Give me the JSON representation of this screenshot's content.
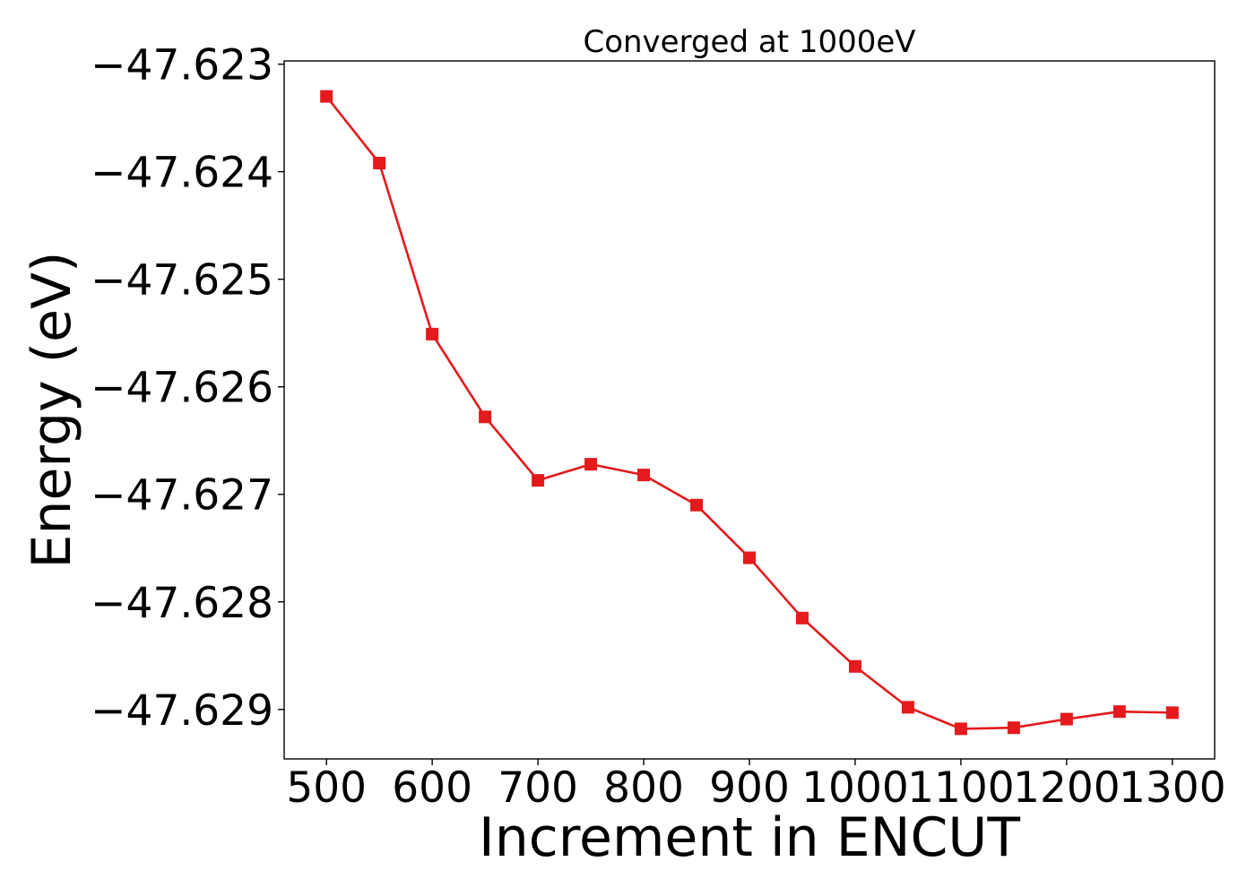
{
  "chart_data": {
    "type": "line",
    "title": "Converged at 1000eV",
    "xlabel": "Increment in ENCUT",
    "ylabel": "Energy (eV)",
    "x": [
      500,
      550,
      600,
      650,
      700,
      750,
      800,
      850,
      900,
      950,
      1000,
      1050,
      1100,
      1150,
      1200,
      1250,
      1300
    ],
    "series": [
      {
        "values": [
          -47.6233,
          -47.62392,
          -47.62551,
          -47.62628,
          -47.62687,
          -47.62672,
          -47.62682,
          -47.6271,
          -47.62759,
          -47.62815,
          -47.6286,
          -47.62898,
          -47.62918,
          -47.62917,
          -47.62909,
          -47.62902,
          -47.62903
        ],
        "color": "#e41a1c",
        "marker": "square"
      }
    ],
    "xlim": [
      460,
      1340
    ],
    "ylim": [
      -47.62946,
      -47.62297
    ],
    "xticks": [
      500,
      600,
      700,
      800,
      900,
      1000,
      1100,
      1200,
      1300
    ],
    "xtick_labels": [
      "500",
      "600",
      "700",
      "800",
      "900",
      "1000",
      "1100",
      "1200",
      "1300"
    ],
    "yticks": [
      -47.623,
      -47.624,
      -47.625,
      -47.626,
      -47.627,
      -47.628,
      -47.629
    ],
    "ytick_labels": [
      "−47.623",
      "−47.624",
      "−47.625",
      "−47.626",
      "−47.627",
      "−47.628",
      "−47.629"
    ],
    "grid": false,
    "legend": "none"
  }
}
